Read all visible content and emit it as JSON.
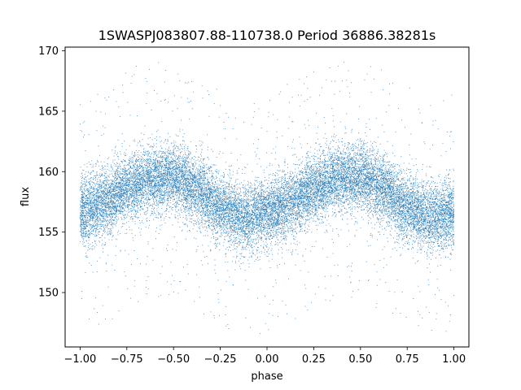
{
  "chart_data": {
    "type": "scatter",
    "title": "1SWASPJ083807.88-110738.0 Period 36886.38281s",
    "xlabel": "phase",
    "ylabel": "flux",
    "xlim": [
      -1.08,
      1.08
    ],
    "ylim": [
      145.5,
      170.3
    ],
    "x_ticks": [
      -1.0,
      -0.75,
      -0.5,
      -0.25,
      0.0,
      0.25,
      0.5,
      0.75,
      1.0
    ],
    "x_tick_labels": [
      "−1.00",
      "−0.75",
      "−0.50",
      "−0.25",
      "0.00",
      "0.25",
      "0.50",
      "0.75",
      "1.00"
    ],
    "y_ticks": [
      150,
      155,
      160,
      165,
      170
    ],
    "y_tick_labels": [
      "150",
      "155",
      "160",
      "165",
      "170"
    ],
    "grid": false,
    "legend": "none",
    "marker_color": "#1f77b4",
    "series": [
      {
        "phase_range": [
          -1.0,
          1.0
        ],
        "mean_flux_profile": {
          "phase": [
            -1.0,
            -0.875,
            -0.75,
            -0.625,
            -0.5,
            -0.375,
            -0.25,
            -0.125,
            0.0,
            0.125,
            0.25,
            0.375,
            0.5,
            0.625,
            0.75,
            0.875,
            1.0
          ],
          "flux": [
            156.6,
            157.4,
            158.6,
            159.4,
            159.5,
            158.5,
            157.0,
            156.1,
            156.6,
            157.4,
            158.6,
            159.4,
            159.5,
            158.5,
            157.0,
            156.1,
            156.6
          ]
        },
        "scatter_sigma": 1.4,
        "approx_points": 20000
      }
    ]
  }
}
